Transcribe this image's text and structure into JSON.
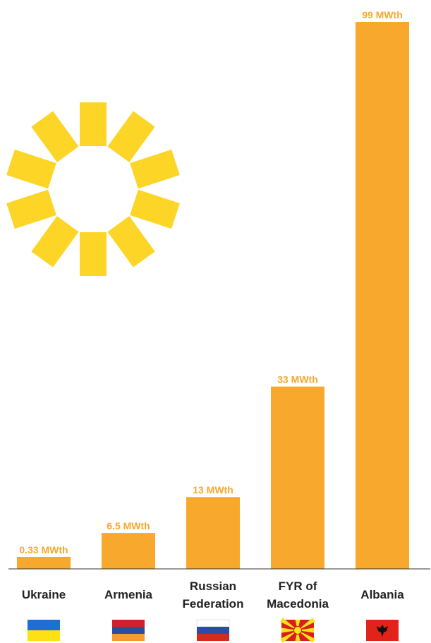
{
  "colors": {
    "bar": "#f8a82c",
    "value_label": "#f8a82c",
    "sun": "#fcd527",
    "axis": "#333333"
  },
  "chart_data": {
    "type": "bar",
    "categories": [
      "Ukraine",
      "Armenia",
      "Russian Federation",
      "FYR of Macedonia",
      "Albania"
    ],
    "category_lines": [
      [
        "Ukraine"
      ],
      [
        "Armenia"
      ],
      [
        "Russian",
        "Federation"
      ],
      [
        "FYR of",
        "Macedonia"
      ],
      [
        "Albania"
      ]
    ],
    "values": [
      0.33,
      6.5,
      13,
      33,
      99
    ],
    "data_labels": [
      "0.33 MWth",
      "6.5 MWth",
      "13 MWth",
      "33 MWth",
      "99 MWth"
    ],
    "unit": "MWth",
    "ylim": [
      0,
      99
    ],
    "grid": false,
    "legend": "none",
    "title": "",
    "xlabel": "",
    "ylabel": ""
  },
  "flags": [
    {
      "country": "Ukraine",
      "icon": "ukraine-flag-icon"
    },
    {
      "country": "Armenia",
      "icon": "armenia-flag-icon"
    },
    {
      "country": "Russian Federation",
      "icon": "russia-flag-icon"
    },
    {
      "country": "FYR of Macedonia",
      "icon": "macedonia-flag-icon"
    },
    {
      "country": "Albania",
      "icon": "albania-flag-icon"
    }
  ],
  "decoration": {
    "icon": "sun-icon"
  }
}
